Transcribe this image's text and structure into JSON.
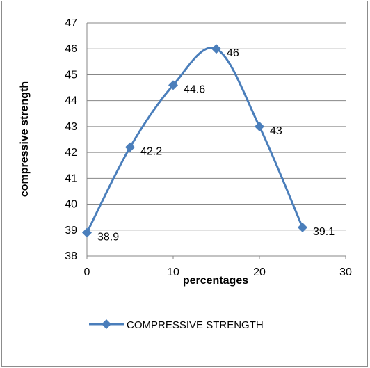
{
  "chart_data": {
    "type": "line",
    "xlabel": "percentages",
    "ylabel": "compressive strength",
    "xlim": [
      0,
      30
    ],
    "ylim": [
      38,
      47
    ],
    "x_ticks": [
      "0",
      "10",
      "20",
      "30"
    ],
    "y_ticks": [
      "38",
      "39",
      "40",
      "41",
      "42",
      "43",
      "44",
      "45",
      "46",
      "47"
    ],
    "grid": "horizontal",
    "smooth": true,
    "legend_position": "bottom",
    "series": [
      {
        "name": "COMPRESSIVE STRENGTH",
        "color": "#4a7ebb",
        "marker": "diamond",
        "x": [
          0,
          5,
          10,
          15,
          20,
          25
        ],
        "values": [
          38.9,
          42.2,
          44.6,
          46,
          43,
          39.1
        ],
        "labels": [
          "38.9",
          "42.2",
          "44.6",
          "46",
          "43",
          "39.1"
        ]
      }
    ]
  }
}
